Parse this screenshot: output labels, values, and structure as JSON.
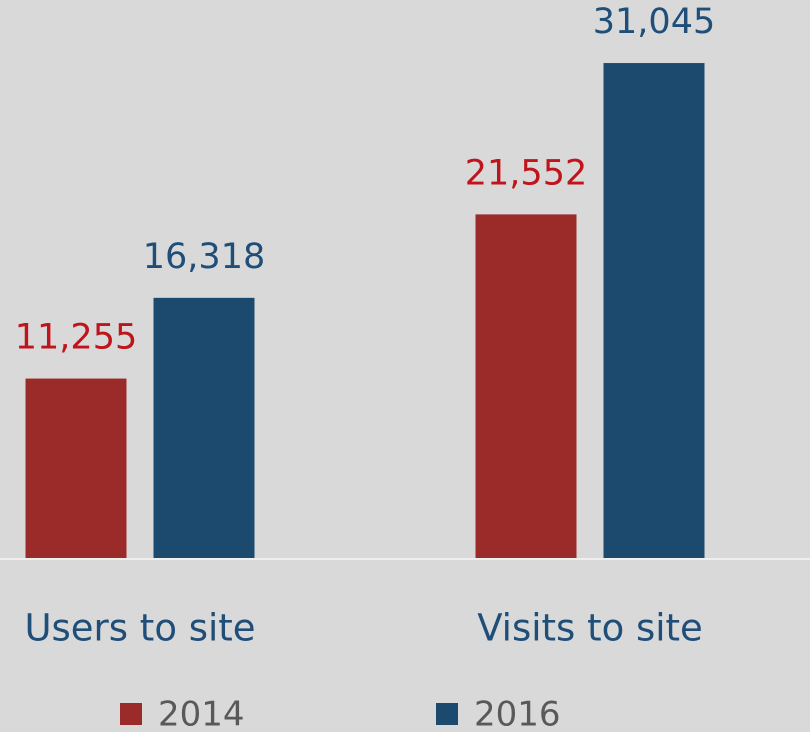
{
  "chart_data": {
    "type": "bar",
    "categories": [
      "Users to site",
      "Visits to site"
    ],
    "series": [
      {
        "name": "2014",
        "color": "#9b2b28",
        "label_color": "#c0141c",
        "values": [
          11255,
          21552
        ],
        "value_labels": [
          "11,255",
          "21,552"
        ]
      },
      {
        "name": "2016",
        "color": "#1b4a6e",
        "label_color": "#1f4e79",
        "values": [
          16318,
          31045
        ],
        "value_labels": [
          "16,318",
          "31,045"
        ]
      }
    ],
    "ylim": [
      0,
      35000
    ]
  }
}
